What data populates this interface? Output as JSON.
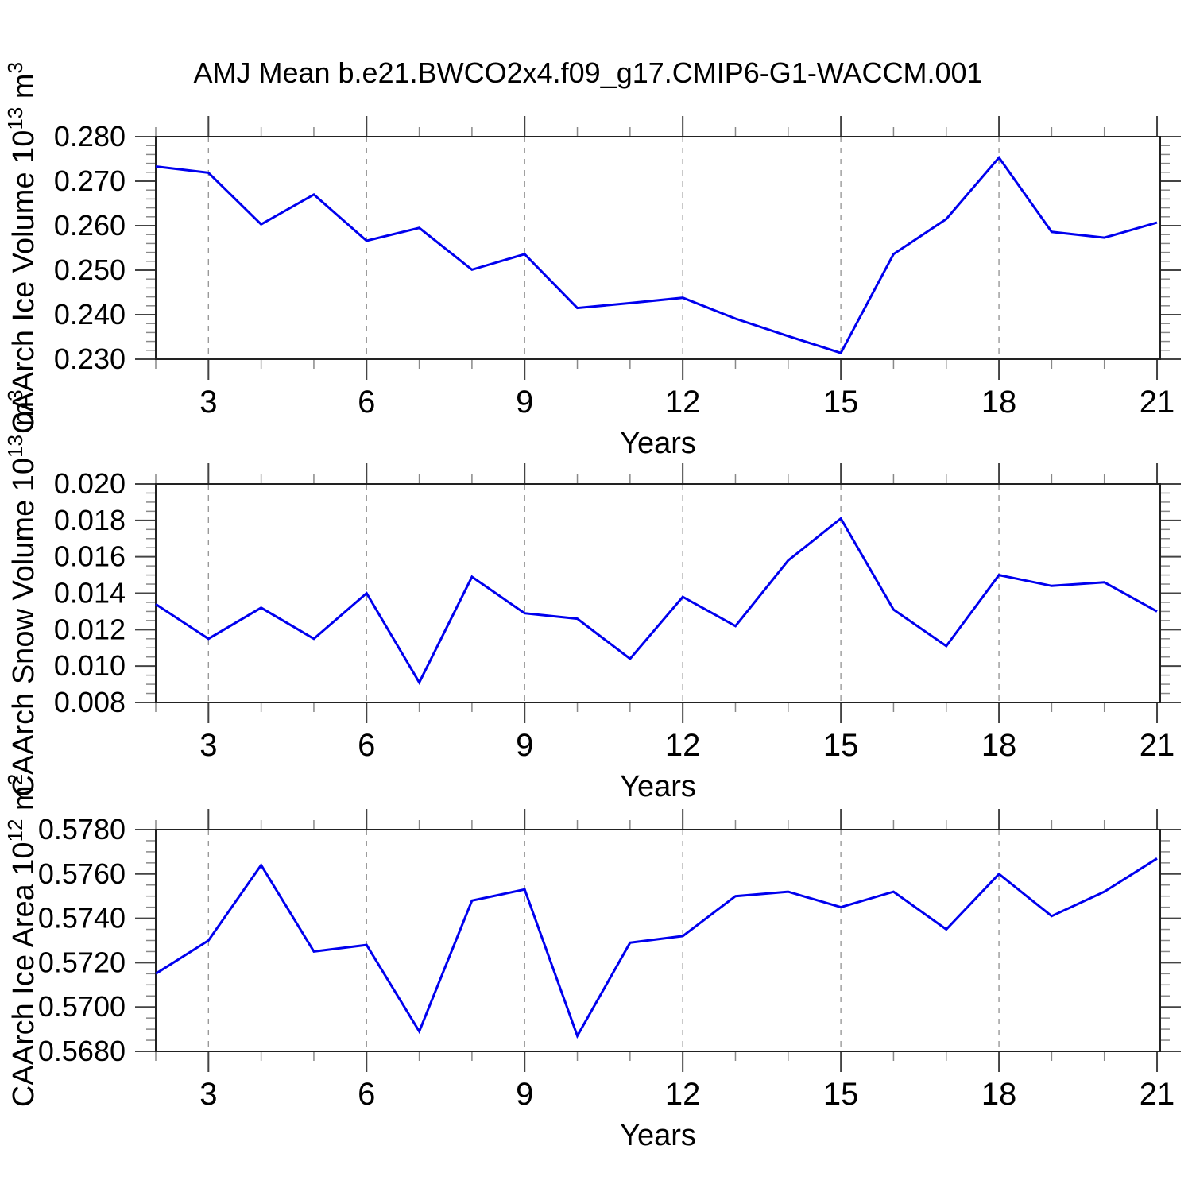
{
  "chart_data": {
    "type": "line",
    "title": "AMJ Mean b.e21.BWCO2x4.f09_g17.CMIP6-G1-WACCM.001",
    "colors": {
      "line": "#0000EE",
      "grid": "#999999",
      "axis": "#222222",
      "tick_major": "#444444",
      "tick_minor": "#888888",
      "text": "#000000"
    },
    "x_common": [
      2,
      3,
      4,
      5,
      6,
      7,
      8,
      9,
      10,
      11,
      12,
      13,
      14,
      15,
      16,
      17,
      18,
      19,
      20,
      21
    ],
    "panels": [
      {
        "name": "ice-volume",
        "ylabel_parts": [
          {
            "t": "CAArch Ice Volume 10"
          },
          {
            "t": "13",
            "sup": true
          },
          {
            "t": " m"
          },
          {
            "t": "3",
            "sup": true
          }
        ],
        "xlabel": "Years",
        "x": [
          2,
          3,
          4,
          5,
          6,
          7,
          8,
          9,
          10,
          11,
          12,
          13,
          14,
          15,
          16,
          17,
          18,
          19,
          20,
          21
        ],
        "values": [
          0.2733,
          0.2719,
          0.2603,
          0.267,
          0.2566,
          0.2595,
          0.2501,
          0.2536,
          0.2415,
          0.2426,
          0.2438,
          0.2391,
          0.2352,
          0.2314,
          0.2536,
          0.2615,
          0.2753,
          0.2586,
          0.2573,
          0.2607
        ],
        "ylim": [
          0.23,
          0.28
        ],
        "ymajor": 0.01,
        "yminor": 0.002,
        "ydecimals": 3,
        "xlim": [
          2,
          21.06
        ],
        "xticks_major": [
          3,
          6,
          9,
          12,
          15,
          18,
          21
        ],
        "xminor_step": 1,
        "grid_x": [
          3,
          6,
          9,
          12,
          15,
          18
        ],
        "legend": "none",
        "grid": "vertical-dashed"
      },
      {
        "name": "snow-volume",
        "ylabel_parts": [
          {
            "t": "CAArch Snow Volume 10"
          },
          {
            "t": "13",
            "sup": true
          },
          {
            "t": " m"
          },
          {
            "t": "3",
            "sup": true
          }
        ],
        "xlabel": "Years",
        "x": [
          2,
          3,
          4,
          5,
          6,
          7,
          8,
          9,
          10,
          11,
          12,
          13,
          14,
          15,
          16,
          17,
          18,
          19,
          20,
          21
        ],
        "values": [
          0.0134,
          0.0115,
          0.0132,
          0.0115,
          0.014,
          0.0091,
          0.0149,
          0.0129,
          0.0126,
          0.0104,
          0.0138,
          0.0122,
          0.0158,
          0.0181,
          0.0131,
          0.0111,
          0.015,
          0.0144,
          0.0146,
          0.013
        ],
        "ylim": [
          0.008,
          0.02
        ],
        "ymajor": 0.002,
        "yminor": 0.0005,
        "ydecimals": 3,
        "xlim": [
          2,
          21.06
        ],
        "xticks_major": [
          3,
          6,
          9,
          12,
          15,
          18,
          21
        ],
        "xminor_step": 1,
        "grid_x": [
          3,
          6,
          9,
          12,
          15,
          18
        ],
        "legend": "none",
        "grid": "vertical-dashed"
      },
      {
        "name": "ice-area",
        "ylabel_parts": [
          {
            "t": "CAArch Ice Area 10"
          },
          {
            "t": "12",
            "sup": true
          },
          {
            "t": " m"
          },
          {
            "t": "2",
            "sup": true
          }
        ],
        "xlabel": "Years",
        "x": [
          2,
          3,
          4,
          5,
          6,
          7,
          8,
          9,
          10,
          11,
          12,
          13,
          14,
          15,
          16,
          17,
          18,
          19,
          20,
          21
        ],
        "values": [
          0.5715,
          0.573,
          0.5764,
          0.5725,
          0.5728,
          0.5689,
          0.5748,
          0.5753,
          0.5687,
          0.5729,
          0.5732,
          0.575,
          0.5752,
          0.5745,
          0.5752,
          0.5735,
          0.576,
          0.5741,
          0.5752,
          0.5767
        ],
        "ylim": [
          0.568,
          0.578
        ],
        "ymajor": 0.002,
        "yminor": 0.0005,
        "ydecimals": 4,
        "xlim": [
          2,
          21.06
        ],
        "xticks_major": [
          3,
          6,
          9,
          12,
          15,
          18,
          21
        ],
        "xminor_step": 1,
        "grid_x": [
          3,
          6,
          9,
          12,
          15,
          18
        ],
        "legend": "none",
        "grid": "vertical-dashed"
      }
    ]
  }
}
